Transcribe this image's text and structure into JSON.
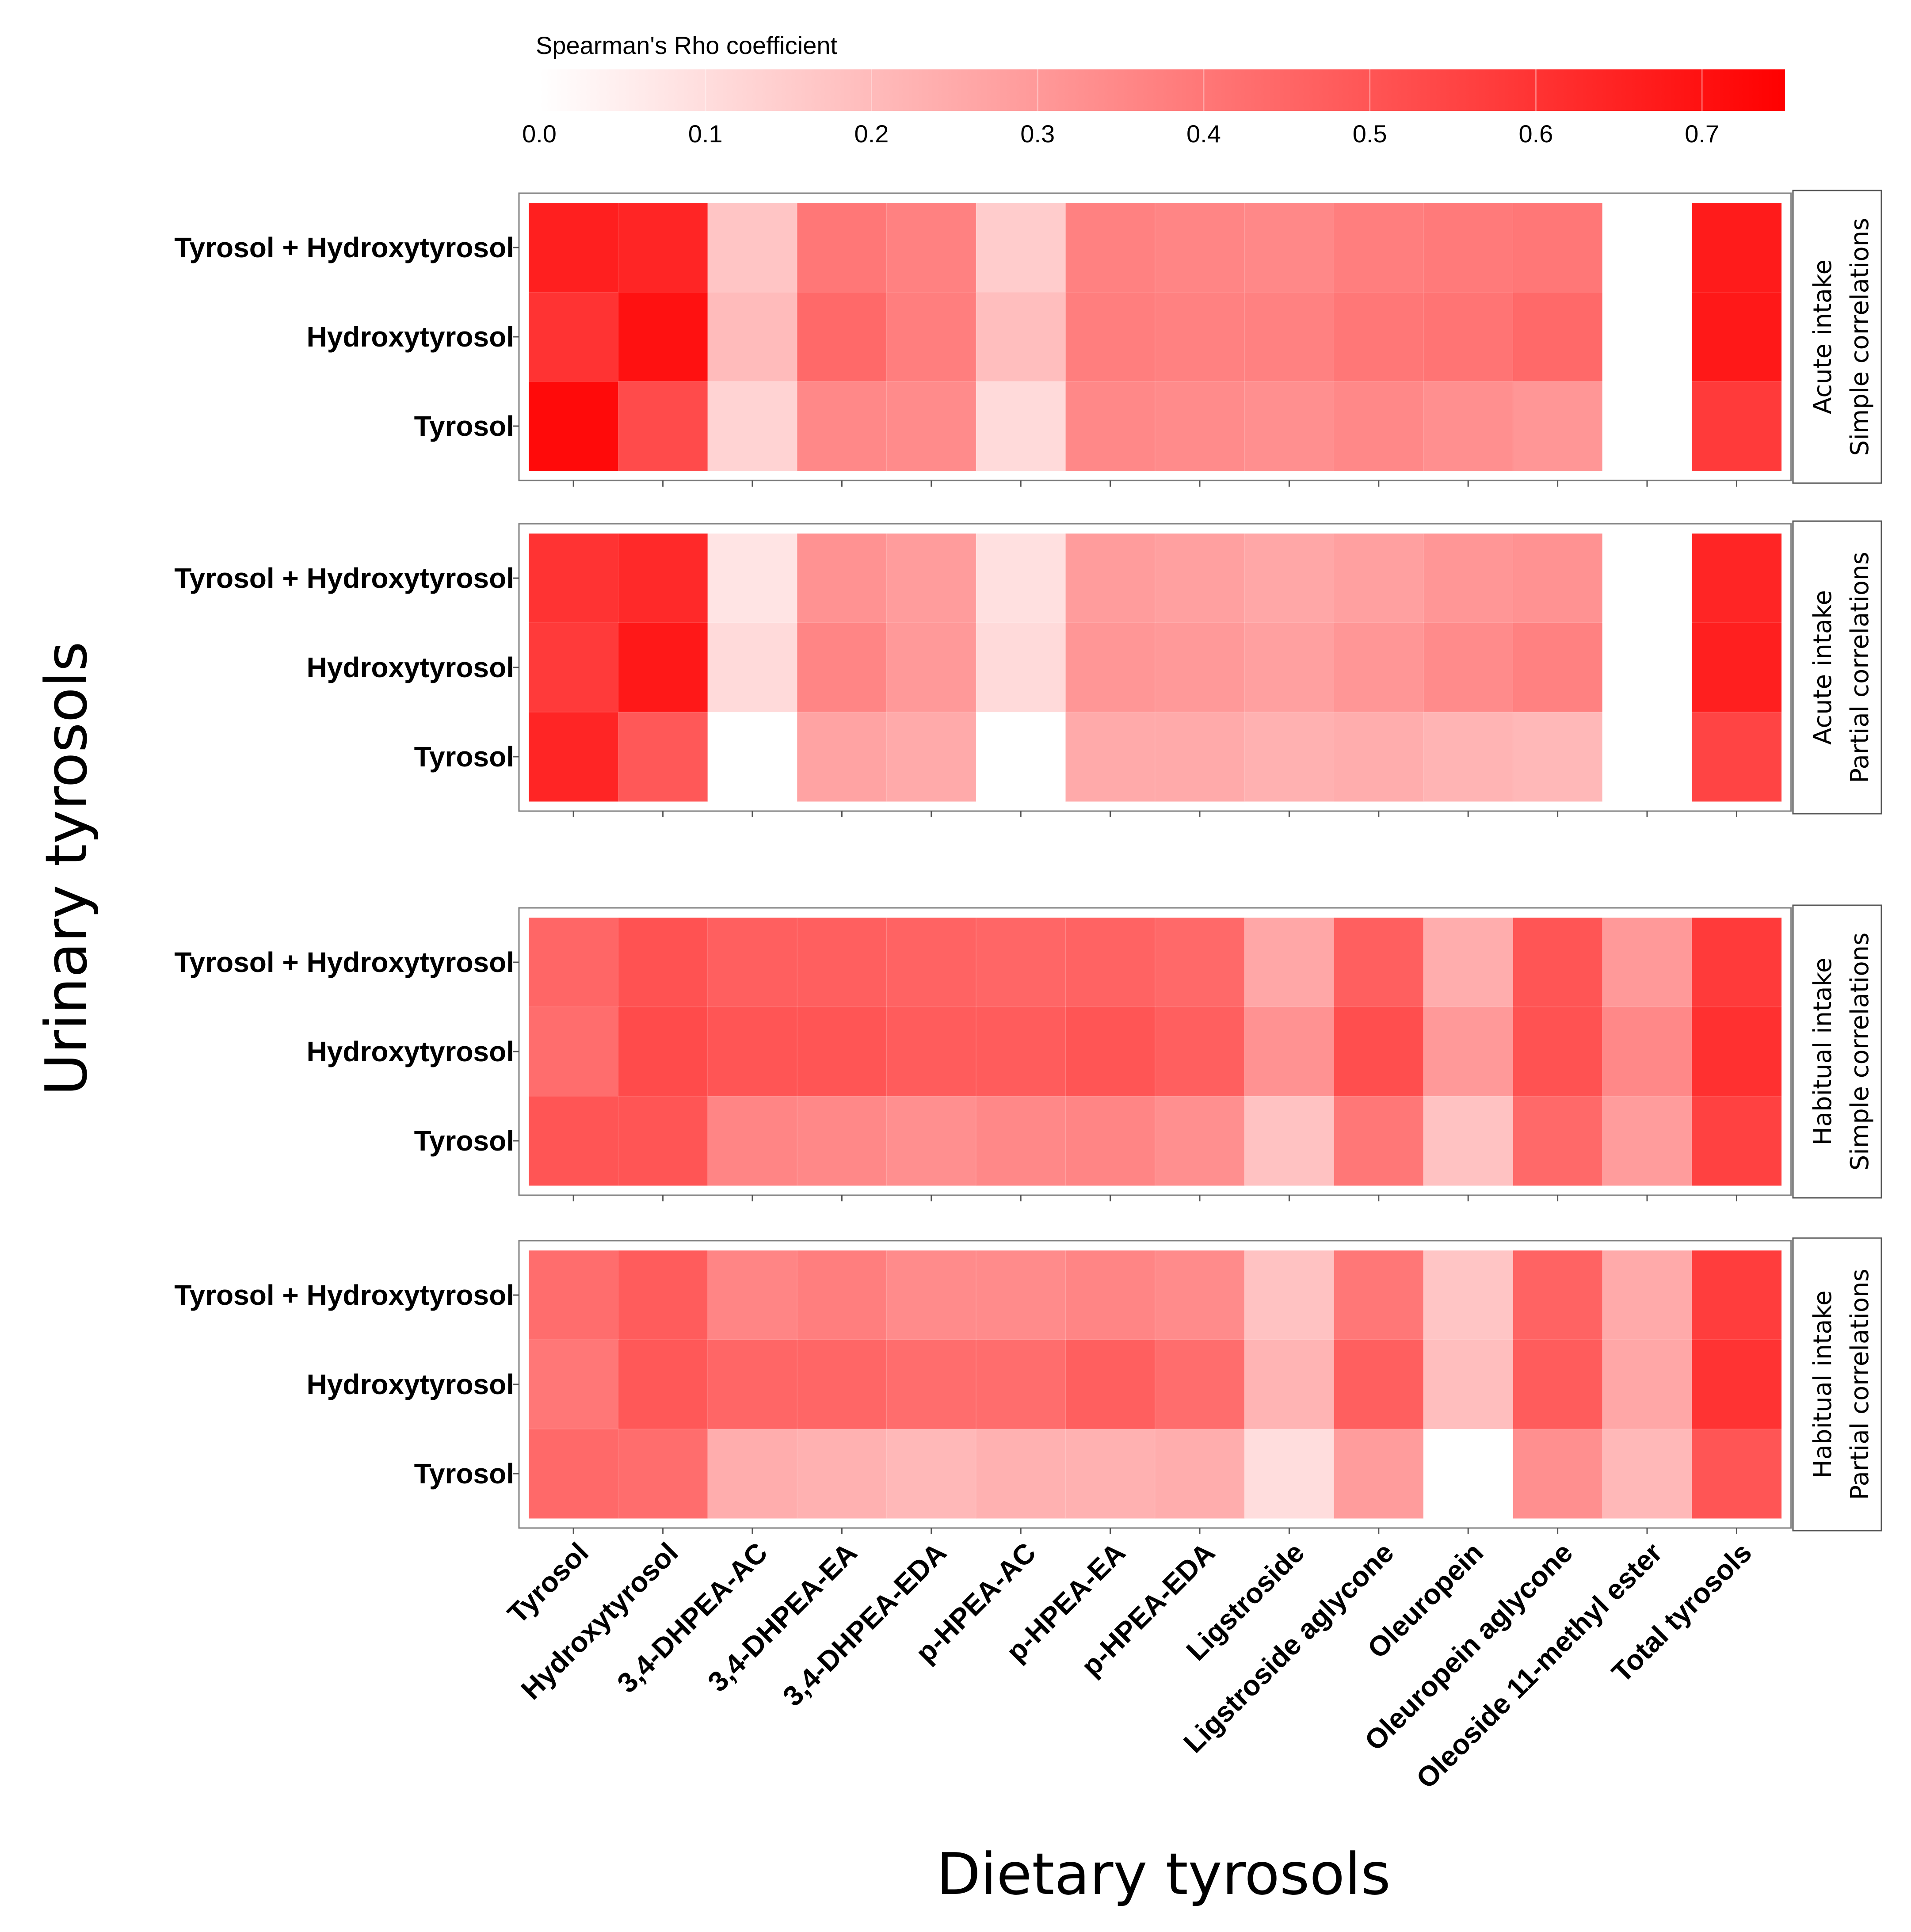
{
  "chart_data": {
    "type": "heatmap",
    "legend": {
      "title": "Spearman's Rho coefficient",
      "ticks": [
        "0.0",
        "0.1",
        "0.2",
        "0.3",
        "0.4",
        "0.5",
        "0.6",
        "0.7"
      ],
      "tick_values": [
        0.0,
        0.1,
        0.2,
        0.3,
        0.4,
        0.5,
        0.6,
        0.7
      ],
      "range": [
        0.0,
        0.75
      ],
      "low_color": "#ffffff",
      "high_color": "#ff0000"
    },
    "xlabel": "Dietary tyrosols",
    "ylabel": "Urinary tyrosols",
    "columns": [
      "Tyrosol",
      "Hydroxytyrosol",
      "3,4-DHPEA-AC",
      "3,4-DHPEA-EA",
      "3,4-DHPEA-EDA",
      "p-HPEA-AC",
      "p-HPEA-EA",
      "p-HPEA-EDA",
      "Ligstroside",
      "Ligstroside aglycone",
      "Oleuropein",
      "Oleuropein aglycone",
      "Oleoside 11-methyl ester",
      "Total tyrosols"
    ],
    "rows": [
      "Tyrosol + Hydroxytyrosol",
      "Hydroxytyrosol",
      "Tyrosol"
    ],
    "panels": [
      {
        "strip": [
          "Acute intake",
          "Simple correlations"
        ],
        "values": [
          [
            0.66,
            0.64,
            0.17,
            0.4,
            0.37,
            0.15,
            0.37,
            0.36,
            0.35,
            0.38,
            0.39,
            0.4,
            null,
            0.67
          ],
          [
            0.6,
            0.7,
            0.2,
            0.44,
            0.38,
            0.19,
            0.38,
            0.37,
            0.37,
            0.4,
            0.41,
            0.44,
            null,
            0.68
          ],
          [
            0.72,
            0.53,
            0.13,
            0.35,
            0.34,
            0.11,
            0.35,
            0.34,
            0.33,
            0.35,
            0.33,
            0.31,
            null,
            0.58
          ]
        ]
      },
      {
        "strip": [
          "Acute intake",
          "Partial correlations"
        ],
        "values": [
          [
            0.6,
            0.63,
            0.08,
            0.32,
            0.29,
            0.09,
            0.29,
            0.28,
            0.26,
            0.28,
            0.31,
            0.32,
            null,
            0.64
          ],
          [
            0.58,
            0.68,
            0.11,
            0.36,
            0.3,
            0.11,
            0.31,
            0.3,
            0.28,
            0.31,
            0.34,
            0.37,
            null,
            0.66
          ],
          [
            0.64,
            0.49,
            null,
            0.27,
            0.25,
            null,
            0.25,
            0.25,
            0.23,
            0.24,
            0.22,
            0.21,
            null,
            0.55
          ]
        ]
      },
      {
        "strip": [
          "Habitual intake",
          "Simple correlations"
        ],
        "values": [
          [
            0.45,
            0.51,
            0.47,
            0.47,
            0.46,
            0.45,
            0.46,
            0.44,
            0.26,
            0.47,
            0.24,
            0.5,
            0.3,
            0.58
          ],
          [
            0.43,
            0.53,
            0.5,
            0.5,
            0.48,
            0.48,
            0.5,
            0.47,
            0.32,
            0.52,
            0.3,
            0.51,
            0.35,
            0.61
          ],
          [
            0.5,
            0.5,
            0.36,
            0.35,
            0.33,
            0.35,
            0.36,
            0.33,
            0.18,
            0.4,
            0.18,
            0.44,
            0.29,
            0.56
          ]
        ]
      },
      {
        "strip": [
          "Habitual intake",
          "Partial correlations"
        ],
        "values": [
          [
            0.43,
            0.48,
            0.36,
            0.38,
            0.34,
            0.34,
            0.36,
            0.34,
            0.18,
            0.4,
            0.17,
            0.46,
            0.25,
            0.57
          ],
          [
            0.4,
            0.49,
            0.45,
            0.45,
            0.43,
            0.43,
            0.47,
            0.43,
            0.22,
            0.47,
            0.19,
            0.48,
            0.26,
            0.6
          ],
          [
            0.44,
            0.43,
            0.24,
            0.23,
            0.21,
            0.23,
            0.23,
            0.24,
            0.1,
            0.29,
            null,
            0.33,
            0.21,
            0.5
          ]
        ]
      }
    ]
  }
}
